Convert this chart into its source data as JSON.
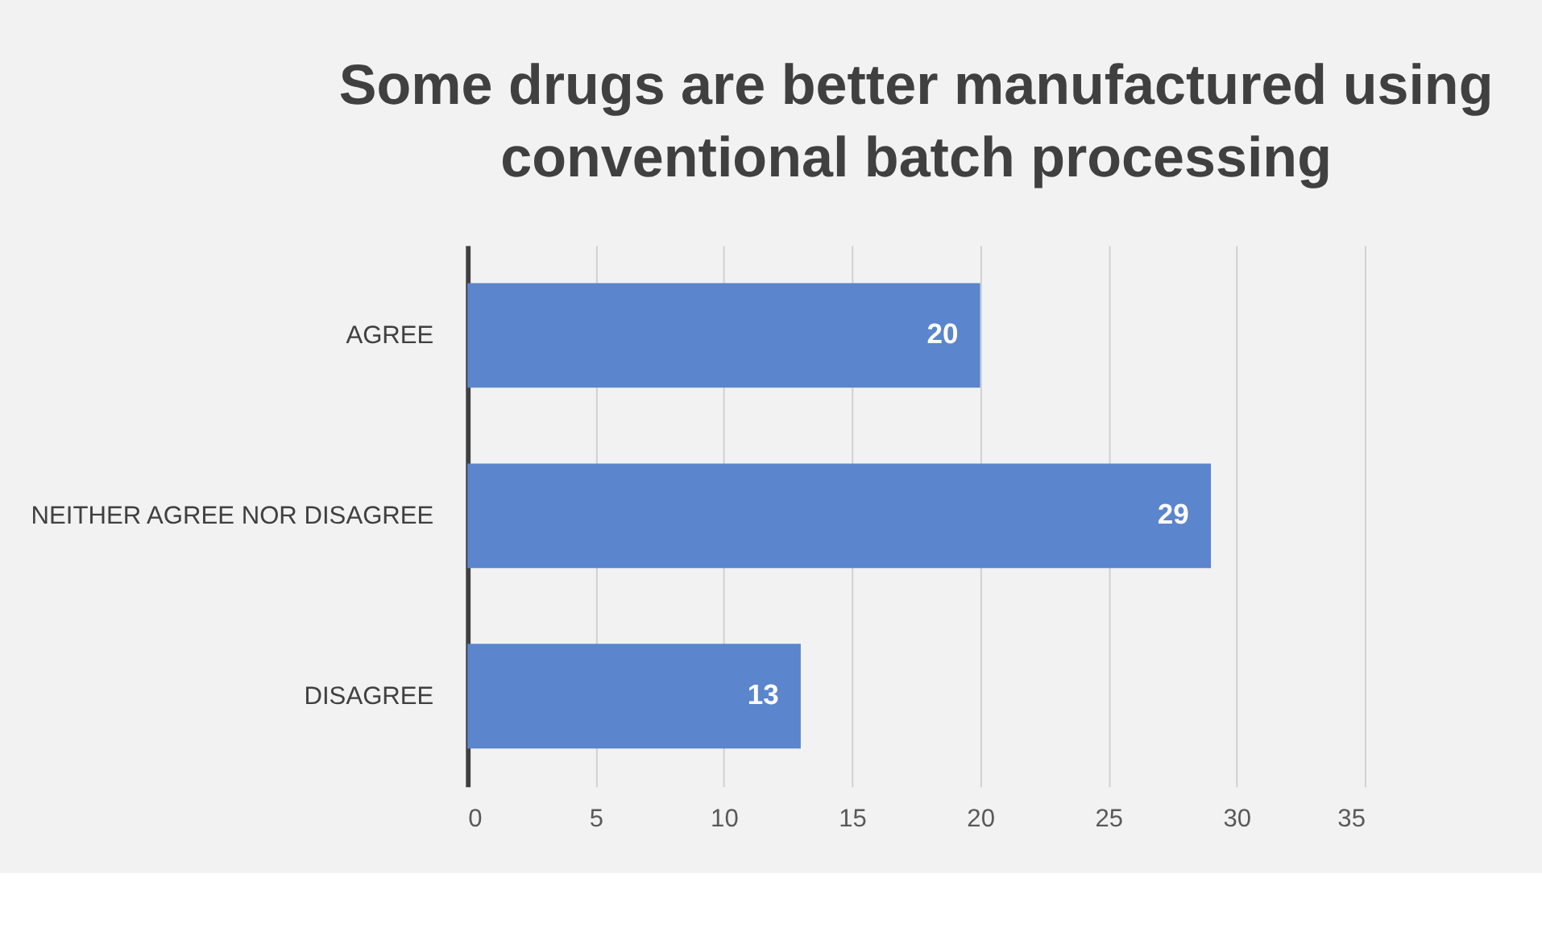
{
  "chart_data": {
    "type": "bar",
    "orientation": "horizontal",
    "title": "Some drugs are better manufactured using conventional batch processing",
    "categories": [
      "AGREE",
      "NEITHER AGREE NOR DISAGREE",
      "DISAGREE"
    ],
    "values": [
      20,
      29,
      13
    ],
    "color": "#5b85cc",
    "xlim": [
      0,
      35
    ],
    "xticks": [
      0,
      5,
      10,
      15,
      20,
      25,
      30,
      35
    ],
    "grid": "x",
    "data_labels": true
  }
}
